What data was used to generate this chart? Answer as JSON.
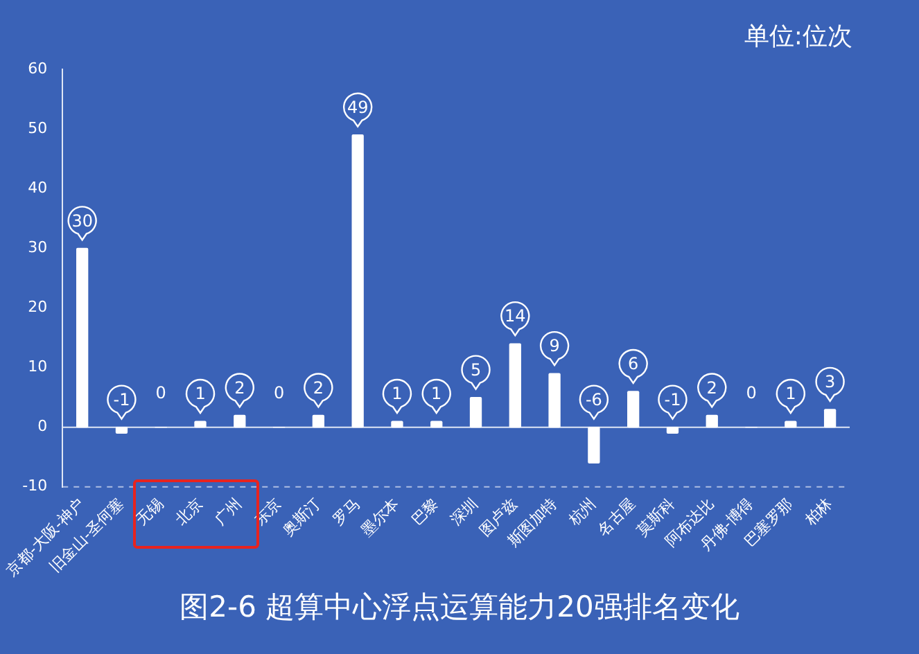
{
  "chart_data": {
    "type": "bar",
    "title": "图2-6 超算中心浮点运算能力20强排名变化",
    "annotations": [
      "单位:位次"
    ],
    "categories": [
      "京都-大阪-神户",
      "旧金山-圣何塞",
      "无锡",
      "北京",
      "广州",
      "东京",
      "奥斯汀",
      "罗马",
      "墨尔本",
      "巴黎",
      "深圳",
      "图卢兹",
      "斯图加特",
      "杭州",
      "名古屋",
      "莫斯科",
      "阿布达比",
      "丹佛-博得",
      "巴塞罗那",
      "柏林"
    ],
    "values": [
      30,
      -1,
      0,
      1,
      2,
      0,
      2,
      49,
      1,
      1,
      5,
      14,
      9,
      -6,
      6,
      -1,
      2,
      0,
      1,
      3
    ],
    "color": "#ffffff",
    "ylim": [
      -10,
      60
    ],
    "yticks": [
      -10,
      0,
      10,
      20,
      30,
      40,
      50,
      60
    ],
    "grid": false,
    "ref_lines": [
      {
        "axis": "y",
        "value": 0,
        "line_style": "solid"
      },
      {
        "axis": "y",
        "value": -10,
        "line_style": "dashed"
      }
    ],
    "data_labels": true
  }
}
